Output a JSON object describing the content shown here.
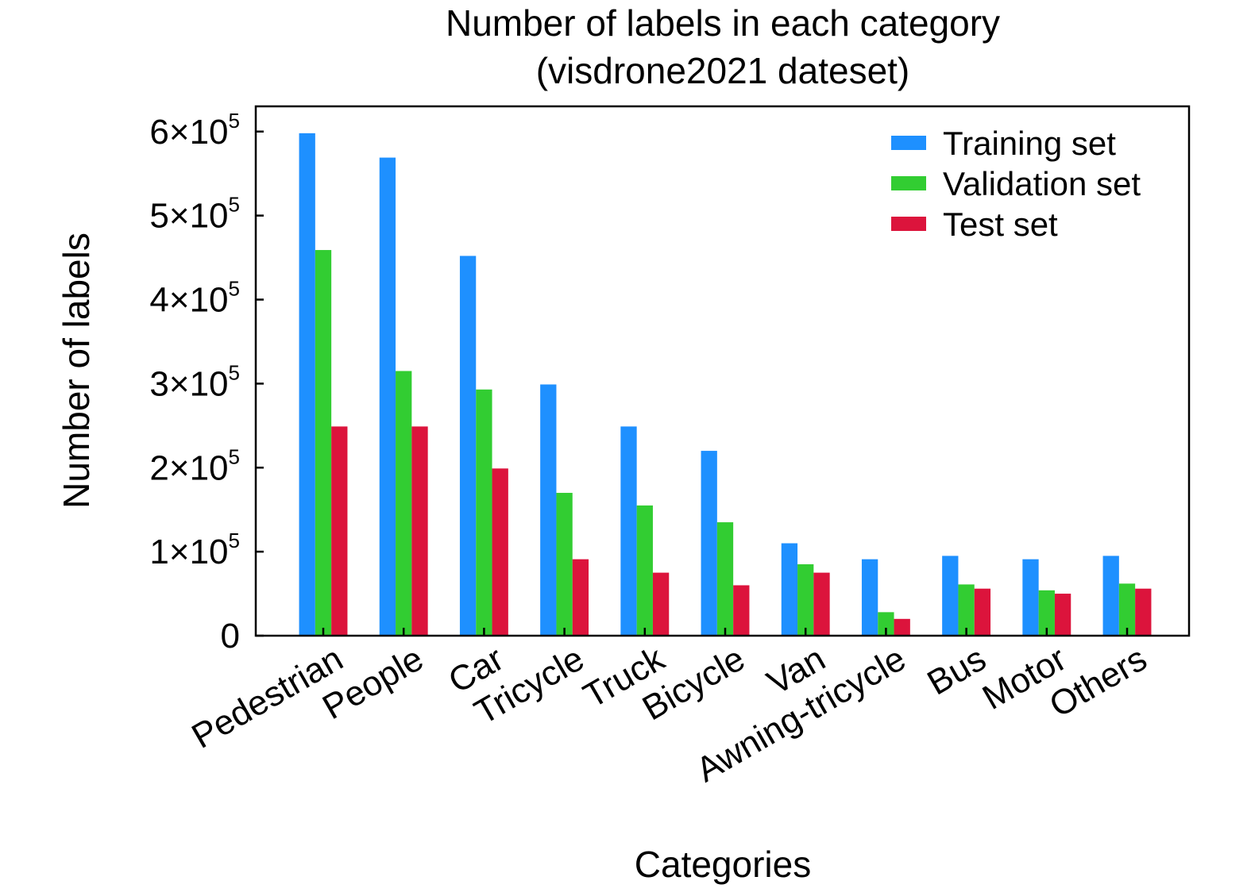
{
  "chart_data": {
    "type": "bar",
    "title": "Number of labels in each category",
    "subtitle": "(visdrone2021 dateset)",
    "xlabel": "Categories",
    "ylabel": "Number of labels",
    "categories": [
      "Pedestrian",
      "People",
      "Car",
      "Tricycle",
      "Truck",
      "Bicycle",
      "Van",
      "Awning-tricycle",
      "Bus",
      "Motor",
      "Others"
    ],
    "series": [
      {
        "name": "Training set",
        "color": "#1e90ff",
        "values": [
          598000,
          569000,
          452000,
          299000,
          249000,
          220000,
          110000,
          91000,
          95000,
          91000,
          95000
        ]
      },
      {
        "name": "Validation set",
        "color": "#32cd32",
        "values": [
          459000,
          315000,
          293000,
          170000,
          155000,
          135000,
          85000,
          28000,
          61000,
          54000,
          62000
        ]
      },
      {
        "name": "Test set",
        "color": "#dc143c",
        "values": [
          249000,
          249000,
          199000,
          91000,
          75000,
          60000,
          75000,
          20000,
          56000,
          50000,
          56000
        ]
      }
    ],
    "yticks": [
      {
        "value": 0,
        "mantissa": "0",
        "exponent": ""
      },
      {
        "value": 100000,
        "mantissa": "1×10",
        "exponent": "5"
      },
      {
        "value": 200000,
        "mantissa": "2×10",
        "exponent": "5"
      },
      {
        "value": 300000,
        "mantissa": "3×10",
        "exponent": "5"
      },
      {
        "value": 400000,
        "mantissa": "4×10",
        "exponent": "5"
      },
      {
        "value": 500000,
        "mantissa": "5×10",
        "exponent": "5"
      },
      {
        "value": 600000,
        "mantissa": "6×10",
        "exponent": "5"
      }
    ],
    "ylim": [
      0,
      630000
    ],
    "grid": false,
    "legend": "top-right"
  }
}
